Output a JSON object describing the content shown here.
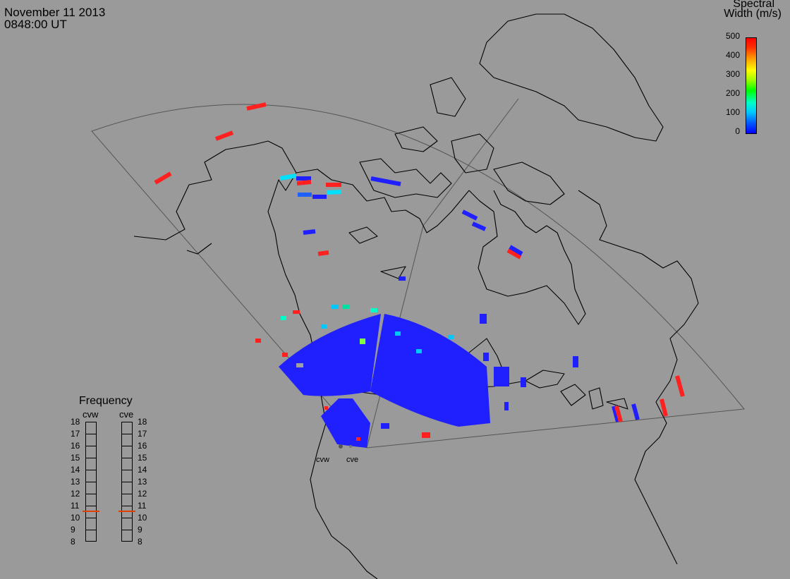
{
  "header": {
    "date": "November 11 2013",
    "time": "0848:00 UT"
  },
  "colorbar": {
    "title_line1": "Spectral",
    "title_line2": "Width (m/s)",
    "ticks": [
      "500",
      "400",
      "300",
      "200",
      "100",
      "0"
    ],
    "colors": [
      "#0000ff",
      "#00c8ff",
      "#00ff00",
      "#ffff00",
      "#ff0000"
    ]
  },
  "frequency": {
    "title": "Frequency",
    "radar1": "cvw",
    "radar2": "cve",
    "scale": [
      "18",
      "17",
      "16",
      "15",
      "14",
      "13",
      "12",
      "11",
      "10",
      "9",
      "8"
    ],
    "cvw_mhz": 10.6,
    "cve_mhz": 10.6,
    "marker_color": "#e04000"
  },
  "radars": {
    "site1_label": "cvw",
    "site2_label": "cve"
  },
  "map": {
    "background": "#9a9a9a",
    "coast_color": "#000000",
    "fov_color": "#555555"
  }
}
